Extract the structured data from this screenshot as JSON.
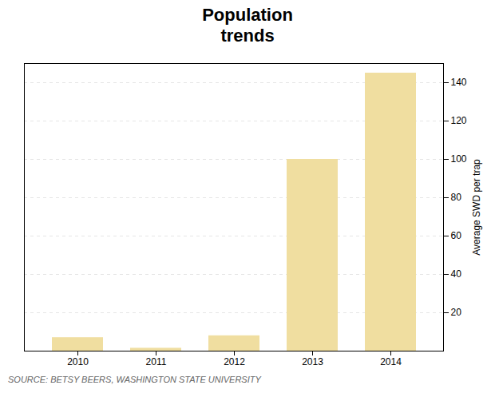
{
  "chart_data": {
    "type": "bar",
    "title": "Population\ntrends",
    "categories": [
      "2010",
      "2011",
      "2012",
      "2013",
      "2014"
    ],
    "values": [
      7,
      1.5,
      8,
      100,
      145
    ],
    "color": "#f0dea0",
    "ylabel": "Average SWD per trap",
    "ylim": [
      0,
      150
    ],
    "yticks": [
      20,
      40,
      60,
      80,
      100,
      120,
      140
    ],
    "grid": true,
    "caption": "SOURCE: BETSY BEERS, WASHINGTON STATE UNIVERSITY"
  }
}
